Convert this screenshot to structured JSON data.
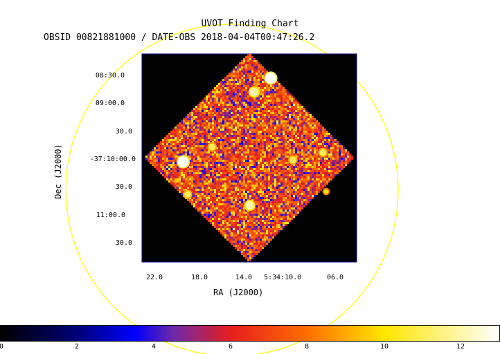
{
  "chart": {
    "title": "UVOT Finding Chart",
    "subtitle": "OBSID 00821881000 / DATE-OBS 2018-04-04T00:47:26.2",
    "ylabel": "Dec (J2000)",
    "xlabel": "RA (J2000)",
    "yticks": [
      "08:30.0",
      "09:00.0",
      "30.0",
      "-37:10:00.0",
      "30.0",
      "11:00.0",
      "30.0"
    ],
    "xticks": [
      "22.0",
      "18.0",
      "14.0",
      "5:34:10.0",
      "06.0"
    ],
    "colorbar_ticks": [
      "0",
      "2",
      "4",
      "6",
      "8",
      "10",
      "12"
    ]
  },
  "chart_data": {
    "type": "heatmap",
    "colormap": "heat",
    "colorbar_range": [
      0,
      13
    ],
    "colors": {
      "background": "#000000",
      "frame": "#00008b",
      "circle": "#ffff00",
      "noise_low": "#5a1fa0",
      "noise_mid": "#e0301e",
      "noise_high": "#ffd23c"
    },
    "stars": [
      {
        "ra": "5:34:19.4",
        "dec": "-37:10:03",
        "brightness": 13
      },
      {
        "ra": "5:34:19.0",
        "dec": "-37:10:38",
        "brightness": 11
      },
      {
        "ra": "5:34:16.8",
        "dec": "-37:09:47",
        "brightness": 11
      },
      {
        "ra": "5:34:13.0",
        "dec": "-37:08:48",
        "brightness": 12
      },
      {
        "ra": "5:34:11.5",
        "dec": "-37:08:33",
        "brightness": 13
      },
      {
        "ra": "5:34:13.4",
        "dec": "-37:10:50",
        "brightness": 12
      },
      {
        "ra": "5:34:09.5",
        "dec": "-37:10:01",
        "brightness": 11
      },
      {
        "ra": "5:34:06.8",
        "dec": "-37:09:53",
        "brightness": 11
      },
      {
        "ra": "5:34:06.5",
        "dec": "-37:10:35",
        "brightness": 10
      }
    ]
  }
}
